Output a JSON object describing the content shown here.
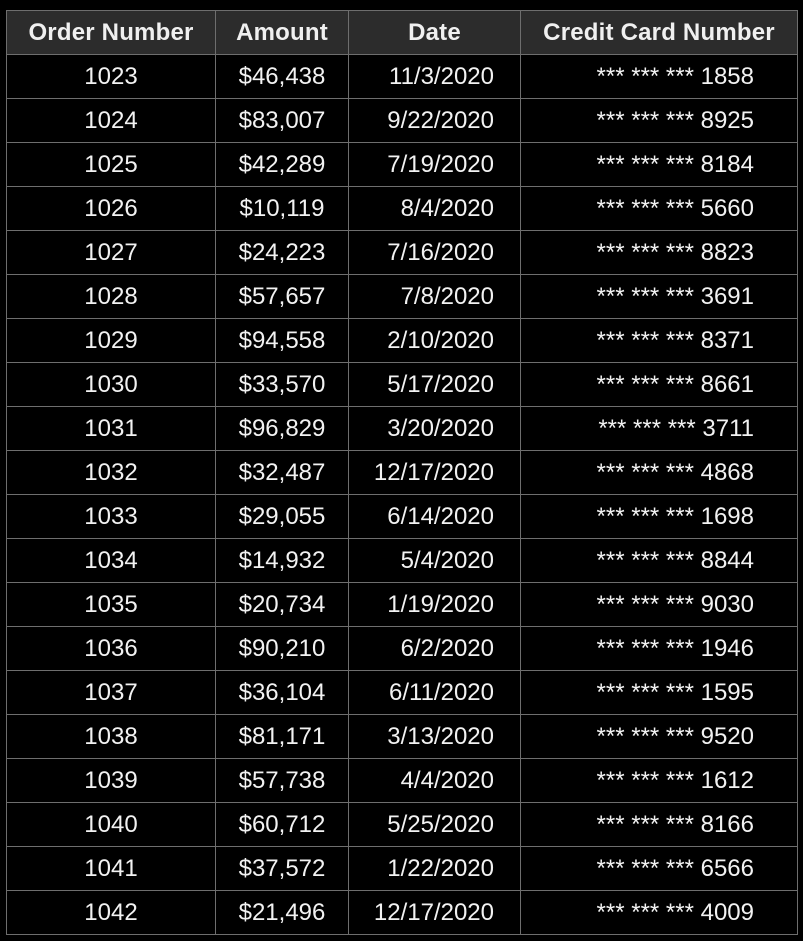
{
  "table": {
    "headers": [
      "Order Number",
      "Amount",
      "Date",
      "Credit Card Number"
    ],
    "rows": [
      [
        "1023",
        "$46,438",
        "11/3/2020",
        "*** *** *** 1858"
      ],
      [
        "1024",
        "$83,007",
        "9/22/2020",
        "*** *** *** 8925"
      ],
      [
        "1025",
        "$42,289",
        "7/19/2020",
        "*** *** *** 8184"
      ],
      [
        "1026",
        "$10,119",
        "8/4/2020",
        "*** *** *** 5660"
      ],
      [
        "1027",
        "$24,223",
        "7/16/2020",
        "*** *** *** 8823"
      ],
      [
        "1028",
        "$57,657",
        "7/8/2020",
        "*** *** *** 3691"
      ],
      [
        "1029",
        "$94,558",
        "2/10/2020",
        "*** *** *** 8371"
      ],
      [
        "1030",
        "$33,570",
        "5/17/2020",
        "*** *** *** 8661"
      ],
      [
        "1031",
        "$96,829",
        "3/20/2020",
        "*** *** *** 3711"
      ],
      [
        "1032",
        "$32,487",
        "12/17/2020",
        "*** *** *** 4868"
      ],
      [
        "1033",
        "$29,055",
        "6/14/2020",
        "*** *** *** 1698"
      ],
      [
        "1034",
        "$14,932",
        "5/4/2020",
        "*** *** *** 8844"
      ],
      [
        "1035",
        "$20,734",
        "1/19/2020",
        "*** *** *** 9030"
      ],
      [
        "1036",
        "$90,210",
        "6/2/2020",
        "*** *** *** 1946"
      ],
      [
        "1037",
        "$36,104",
        "6/11/2020",
        "*** *** *** 1595"
      ],
      [
        "1038",
        "$81,171",
        "3/13/2020",
        "*** *** *** 9520"
      ],
      [
        "1039",
        "$57,738",
        "4/4/2020",
        "*** *** *** 1612"
      ],
      [
        "1040",
        "$60,712",
        "5/25/2020",
        "*** *** *** 8166"
      ],
      [
        "1041",
        "$37,572",
        "1/22/2020",
        "*** *** *** 6566"
      ],
      [
        "1042",
        "$21,496",
        "12/17/2020",
        "*** *** *** 4009"
      ]
    ]
  },
  "colors": {
    "background": "#000000",
    "header_background": "#2c2c2c",
    "grid_line": "#6e6e6e",
    "text": "#f2f2f2"
  }
}
